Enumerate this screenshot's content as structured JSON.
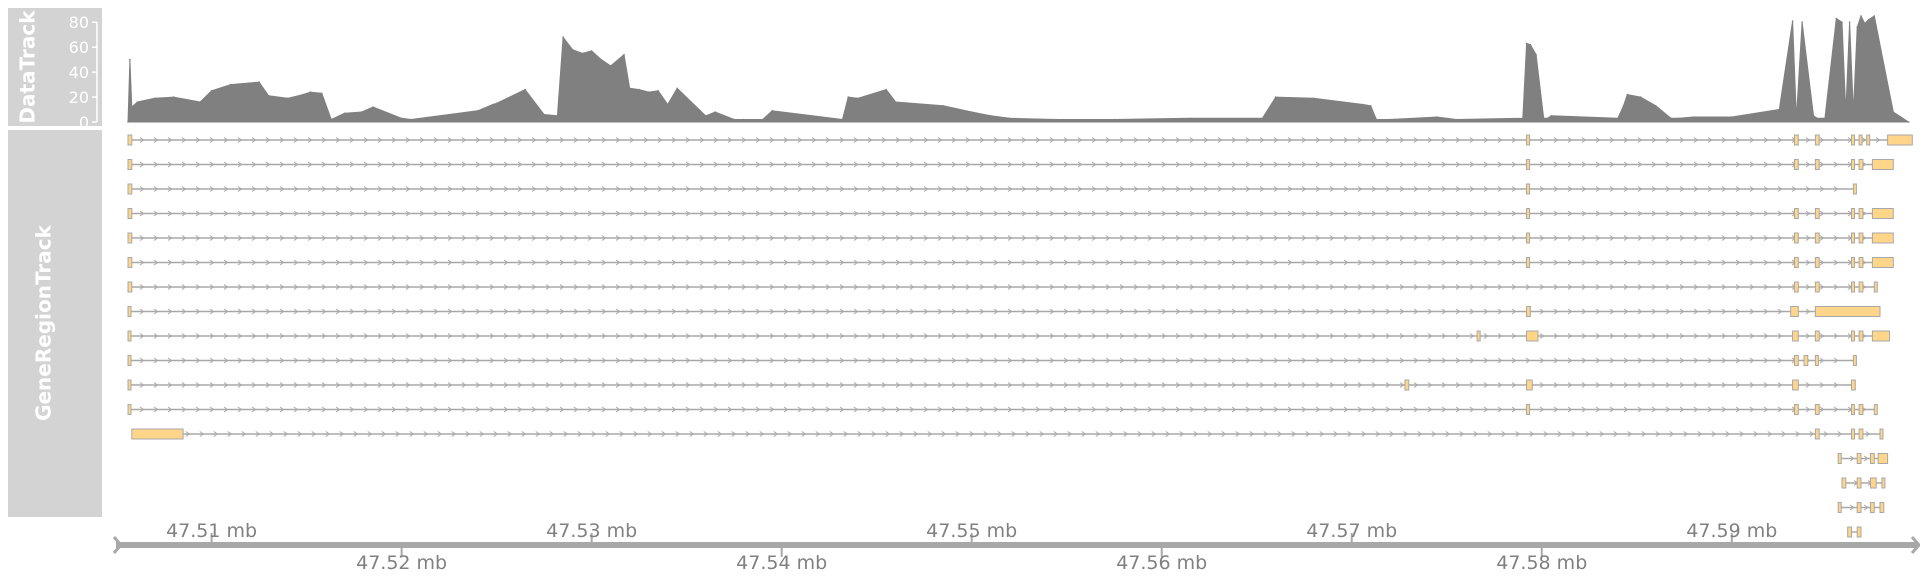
{
  "chart_data": {
    "type": "area",
    "tracks": [
      {
        "name": "DataTrack",
        "type": "area",
        "ylim": [
          0,
          85
        ],
        "y_ticks": [
          0,
          20,
          40,
          60,
          80
        ],
        "y_tick_labels": [
          "0",
          "20",
          "40",
          "60",
          "80"
        ],
        "x_mb": [
          47.5056,
          47.5057,
          47.5058,
          47.5061,
          47.507,
          47.508,
          47.5094,
          47.51,
          47.511,
          47.5125,
          47.513,
          47.514,
          47.5148,
          47.5152,
          47.5158,
          47.5163,
          47.517,
          47.5179,
          47.5185,
          47.52,
          47.5205,
          47.524,
          47.5248,
          47.525,
          47.5265,
          47.5275,
          47.5282,
          47.5285,
          47.529,
          47.5295,
          47.53,
          47.5305,
          47.531,
          47.5317,
          47.532,
          47.5325,
          47.533,
          47.5335,
          47.534,
          47.5345,
          47.536,
          47.5365,
          47.5375,
          47.538,
          47.539,
          47.5395,
          47.5432,
          47.5435,
          47.544,
          47.5455,
          47.546,
          47.5485,
          47.55,
          47.551,
          47.552,
          47.5545,
          47.5575,
          47.5615,
          47.5653,
          47.566,
          47.568,
          47.5706,
          47.571,
          47.5713,
          47.572,
          47.5745,
          47.5755,
          47.579,
          47.5792,
          47.5794,
          47.5797,
          47.5801,
          47.5803,
          47.5805,
          47.584,
          47.5843,
          47.5845,
          47.5852,
          47.586,
          47.5868,
          47.5872,
          47.588,
          47.59,
          47.5925,
          47.5932,
          47.5934,
          47.5937,
          47.5943,
          47.5945,
          47.5949,
          47.5955,
          47.5958,
          47.596,
          47.5962,
          47.5964,
          47.5966,
          47.5968,
          47.597,
          47.5972,
          47.5975,
          47.5985,
          47.5993
        ],
        "y": [
          0,
          50,
          12,
          16,
          19,
          20,
          16,
          25,
          30,
          32,
          21,
          19,
          22,
          24,
          23,
          2,
          7,
          8,
          12,
          3,
          2,
          9,
          14,
          15,
          26,
          6,
          5,
          68,
          58,
          55,
          57,
          50,
          45,
          54,
          27,
          26,
          24,
          25,
          14,
          27,
          5,
          8,
          2,
          2,
          2,
          9,
          2,
          20,
          19,
          26,
          16,
          13,
          8,
          5,
          3,
          2,
          2,
          3,
          3,
          20,
          19,
          14,
          13,
          2,
          2,
          4,
          2,
          3,
          63,
          62,
          54,
          3,
          3,
          5,
          3,
          13,
          22,
          20,
          13,
          3,
          3,
          4,
          4,
          10,
          81,
          3,
          80,
          5,
          3,
          3,
          83,
          80,
          8,
          80,
          8,
          76,
          85,
          79,
          82,
          85,
          8,
          0
        ],
        "color": "#808080",
        "grid": false
      },
      {
        "name": "GeneRegionTrack",
        "type": "gene_region",
        "exon_color": "#FFD58A",
        "intron_color": "#A8A8A8",
        "transcripts": [
          [
            [
              47.5056,
              47.5058
            ],
            [
              47.5792,
              47.5793
            ],
            [
              47.5933,
              47.5935
            ],
            [
              47.5944,
              47.5946
            ],
            [
              47.5963,
              47.5964
            ],
            [
              47.5967,
              47.5968
            ],
            [
              47.5971,
              47.5972
            ],
            [
              47.5982,
              47.5995
            ]
          ],
          [
            [
              47.5056,
              47.5058
            ],
            [
              47.5792,
              47.5793
            ],
            [
              47.5933,
              47.5935
            ],
            [
              47.5944,
              47.5946
            ],
            [
              47.5963,
              47.5964
            ],
            [
              47.5967,
              47.5969
            ],
            [
              47.5974,
              47.5985
            ]
          ],
          [
            [
              47.5056,
              47.5058
            ],
            [
              47.5792,
              47.5793
            ],
            [
              47.5964,
              47.59645
            ]
          ],
          [
            [
              47.5056,
              47.5058
            ],
            [
              47.5792,
              47.5793
            ],
            [
              47.5933,
              47.5935
            ],
            [
              47.5944,
              47.5946
            ],
            [
              47.5963,
              47.5964
            ],
            [
              47.5967,
              47.5969
            ],
            [
              47.5974,
              47.5985
            ]
          ],
          [
            [
              47.5056,
              47.5058
            ],
            [
              47.5792,
              47.5793
            ],
            [
              47.5933,
              47.5935
            ],
            [
              47.5944,
              47.5946
            ],
            [
              47.5963,
              47.5964
            ],
            [
              47.5967,
              47.5969
            ],
            [
              47.5974,
              47.5985
            ]
          ],
          [
            [
              47.5056,
              47.5058
            ],
            [
              47.5792,
              47.5793
            ],
            [
              47.5933,
              47.5935
            ],
            [
              47.5944,
              47.5946
            ],
            [
              47.5963,
              47.5964
            ],
            [
              47.5967,
              47.5969
            ],
            [
              47.5974,
              47.5985
            ]
          ],
          [
            [
              47.5056,
              47.5058
            ],
            [
              47.5933,
              47.5935
            ],
            [
              47.5944,
              47.5946
            ],
            [
              47.5963,
              47.5964
            ],
            [
              47.5967,
              47.5969
            ],
            [
              47.5975,
              47.5976
            ]
          ],
          [
            [
              47.5056,
              47.5057
            ],
            [
              47.5792,
              47.5794
            ],
            [
              47.5931,
              47.5935
            ],
            [
              47.5944,
              47.5978
            ]
          ],
          [
            [
              47.5056,
              47.5057
            ],
            [
              47.5766,
              47.5767
            ],
            [
              47.5792,
              47.5798
            ],
            [
              47.5932,
              47.5935
            ],
            [
              47.5944,
              47.5946
            ],
            [
              47.5963,
              47.5964
            ],
            [
              47.5967,
              47.5969
            ],
            [
              47.5974,
              47.5983
            ]
          ],
          [
            [
              47.5056,
              47.5057
            ],
            [
              47.5933,
              47.5935
            ],
            [
              47.5938,
              47.594
            ],
            [
              47.5944,
              47.5945
            ],
            [
              47.5964,
              47.59645
            ]
          ],
          [
            [
              47.5056,
              47.5057
            ],
            [
              47.5728,
              47.573
            ],
            [
              47.5792,
              47.5795
            ],
            [
              47.5932,
              47.5935
            ],
            [
              47.5963,
              47.5965
            ]
          ],
          [
            [
              47.5056,
              47.5057
            ],
            [
              47.5792,
              47.5793
            ],
            [
              47.5933,
              47.5935
            ],
            [
              47.5944,
              47.5946
            ],
            [
              47.5963,
              47.5964
            ],
            [
              47.5967,
              47.5969
            ],
            [
              47.5975,
              47.5976
            ]
          ],
          [
            [
              47.5058,
              47.5085
            ],
            [
              47.5944,
              47.5946
            ],
            [
              47.5963,
              47.5964
            ],
            [
              47.5967,
              47.5969
            ],
            [
              47.5978,
              47.5979
            ]
          ],
          [
            [
              47.5956,
              47.5957
            ],
            [
              47.5966,
              47.5968
            ],
            [
              47.5973,
              47.5975
            ],
            [
              47.5977,
              47.5982
            ]
          ],
          [
            [
              47.5958,
              47.596
            ],
            [
              47.5966,
              47.5968
            ],
            [
              47.5973,
              47.5976
            ],
            [
              47.5979,
              47.598
            ]
          ],
          [
            [
              47.5956,
              47.5957
            ],
            [
              47.5966,
              47.5968
            ],
            [
              47.5973,
              47.5975
            ],
            [
              47.5978,
              47.598
            ]
          ],
          [
            [
              47.5961,
              47.5963
            ],
            [
              47.5966,
              47.5968
            ]
          ]
        ]
      }
    ],
    "x_axis": {
      "xlim": [
        47.5056,
        47.5998
      ],
      "unit": "mb",
      "upper_ticks": [
        47.51,
        47.53,
        47.55,
        47.57,
        47.59
      ],
      "upper_labels": [
        "47.51 mb",
        "47.53 mb",
        "47.55 mb",
        "47.57 mb",
        "47.59 mb"
      ],
      "lower_ticks": [
        47.52,
        47.54,
        47.56,
        47.58
      ],
      "lower_labels": [
        "47.52 mb",
        "47.54 mb",
        "47.56 mb",
        "47.58 mb"
      ]
    }
  },
  "colors": {
    "title_panel": "#d3d3d3",
    "title_text": "#ffffff",
    "data_fill": "#808080",
    "exon_fill": "#FFD58A",
    "exon_stroke": "#A8A8A8",
    "intron": "#A8A8A8",
    "axis": "#A8A8A8",
    "axis_text": "#808080"
  }
}
